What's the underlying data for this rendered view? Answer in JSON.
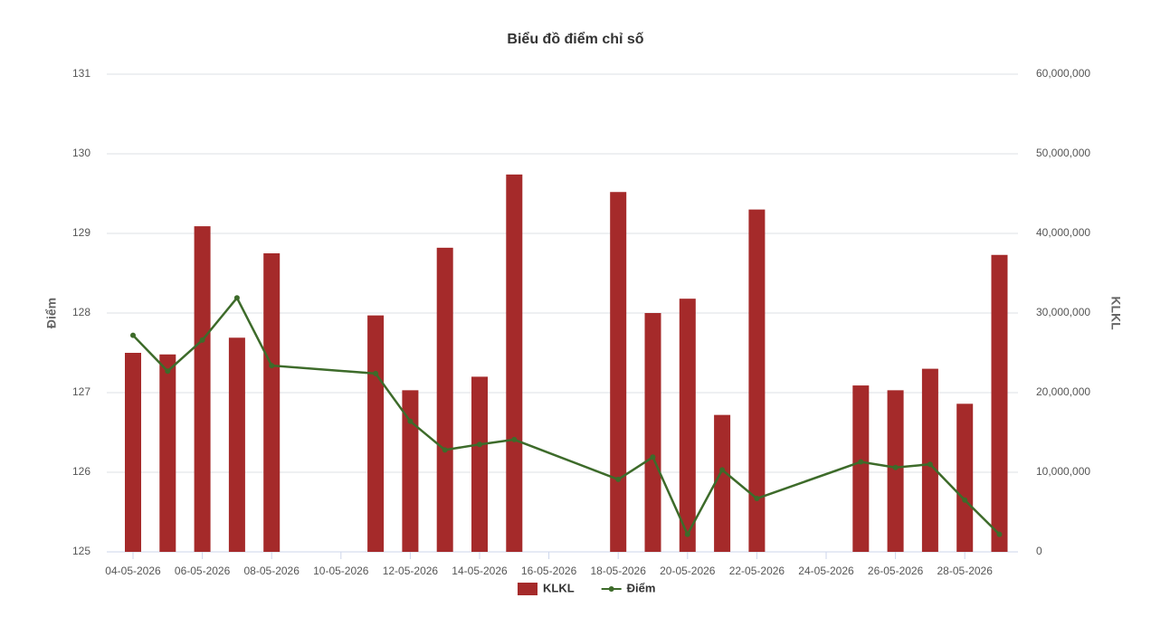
{
  "chart_data": {
    "type": "bar-line",
    "title": "Biểu đồ điểm chỉ số",
    "y_label": "Điểm",
    "y2_label": "KLKL",
    "categories": [
      "04-05-2026",
      null,
      "06-05-2026",
      null,
      "08-05-2026",
      null,
      "10-05-2026",
      null,
      "12-05-2026",
      null,
      "14-05-2026",
      null,
      "16-05-2026",
      null,
      "18-05-2026",
      null,
      "20-05-2026",
      null,
      "22-05-2026",
      null,
      "24-05-2026",
      null,
      "26-05-2026",
      null,
      "28-05-2026",
      null
    ],
    "ylim": [
      125,
      131
    ],
    "yticks": [
      125,
      126,
      127,
      128,
      129,
      130,
      131
    ],
    "y2lim": [
      0,
      60000000
    ],
    "y2ticks": [
      0,
      {
        "value": 10000000,
        "label": "10,000,000"
      },
      {
        "value": 20000000,
        "label": "20,000,000"
      },
      {
        "value": 30000000,
        "label": "30,000,000"
      },
      {
        "value": 40000000,
        "label": "40,000,000"
      },
      {
        "value": 50000000,
        "label": "50,000,000"
      },
      {
        "value": 60000000,
        "label": "60,000,000"
      }
    ],
    "grid": true,
    "legend": "bottom",
    "connect_gaps": true,
    "series": [
      {
        "name": "KLKL",
        "type": "bar",
        "axis": "y2",
        "color": "#a52a2a",
        "values": [
          25000000,
          24800000,
          40900000,
          26900000,
          37500000,
          null,
          null,
          29700000,
          20300000,
          38200000,
          22000000,
          47400000,
          null,
          null,
          45200000,
          30000000,
          31800000,
          17200000,
          43000000,
          null,
          null,
          20900000,
          20300000,
          23000000,
          18600000,
          37300000
        ]
      },
      {
        "name": "Điểm",
        "type": "line",
        "color": "#3d6b2a",
        "values": [
          127.72,
          127.27,
          127.66,
          128.19,
          127.34,
          null,
          null,
          127.24,
          126.64,
          126.28,
          126.35,
          126.41,
          null,
          null,
          125.91,
          126.19,
          125.22,
          126.03,
          125.67,
          null,
          null,
          126.13,
          126.06,
          126.1,
          125.65,
          125.22
        ]
      }
    ]
  }
}
